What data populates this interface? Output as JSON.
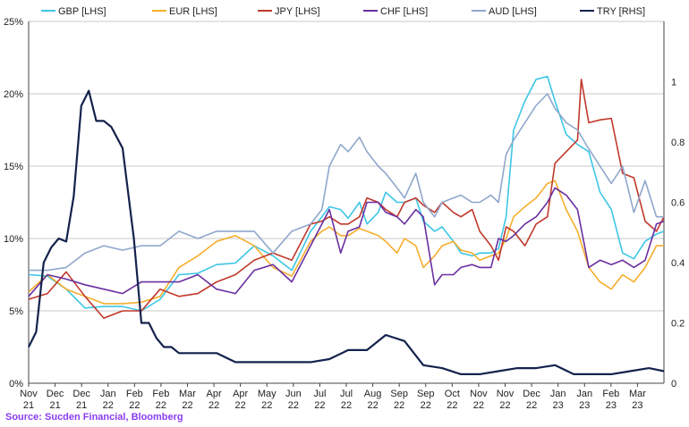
{
  "source": "Source: Sucden Financial, Bloomberg",
  "chart_data": {
    "type": "line",
    "title": "",
    "xlabel": "",
    "ylabel_left": "",
    "ylabel_right": "",
    "ylim_left": [
      0,
      25
    ],
    "ylim_right": [
      0,
      1.2
    ],
    "left_ticks": [
      "0%",
      "5%",
      "10%",
      "15%",
      "20%",
      "25%"
    ],
    "right_ticks": [
      "0",
      "0.2",
      "0.4",
      "0.6",
      "0.8",
      "1"
    ],
    "x_range": [
      0,
      16.9
    ],
    "x_ticks": [
      {
        "m": "Nov",
        "y": "21"
      },
      {
        "m": "Dec",
        "y": "21"
      },
      {
        "m": "Dec",
        "y": "21"
      },
      {
        "m": "Jan",
        "y": "22"
      },
      {
        "m": "Feb",
        "y": "22"
      },
      {
        "m": "Feb",
        "y": "22"
      },
      {
        "m": "Mar",
        "y": "22"
      },
      {
        "m": "Apr",
        "y": "22"
      },
      {
        "m": "Apr",
        "y": "22"
      },
      {
        "m": "May",
        "y": "22"
      },
      {
        "m": "Jun",
        "y": "22"
      },
      {
        "m": "Jul",
        "y": "22"
      },
      {
        "m": "Jul",
        "y": "22"
      },
      {
        "m": "Aug",
        "y": "22"
      },
      {
        "m": "Sep",
        "y": "22"
      },
      {
        "m": "Sep",
        "y": "22"
      },
      {
        "m": "Oct",
        "y": "22"
      },
      {
        "m": "Nov",
        "y": "22"
      },
      {
        "m": "Nov",
        "y": "22"
      },
      {
        "m": "Dec",
        "y": "22"
      },
      {
        "m": "Jan",
        "y": "23"
      },
      {
        "m": "Jan",
        "y": "23"
      },
      {
        "m": "Feb",
        "y": "23"
      },
      {
        "m": "Mar",
        "y": "23"
      }
    ],
    "series": [
      {
        "name": "GBP [LHS]",
        "color": "#3dc6e6",
        "axis": "left",
        "x": [
          0,
          0.5,
          1,
          1.5,
          2,
          2.5,
          3,
          3.5,
          4,
          4.5,
          5,
          5.5,
          6,
          6.5,
          7,
          7.5,
          7.8,
          8,
          8.3,
          8.5,
          8.8,
          9,
          9.3,
          9.5,
          9.8,
          10,
          10.3,
          10.5,
          10.8,
          11,
          11.3,
          11.5,
          11.8,
          12,
          12.3,
          12.5,
          12.7,
          12.9,
          13.2,
          13.5,
          13.8,
          14,
          14.3,
          14.6,
          14.9,
          15.2,
          15.5,
          15.8,
          16.1,
          16.4,
          16.7,
          16.9
        ],
        "y": [
          7.5,
          7.4,
          6.5,
          5.2,
          5.3,
          5.3,
          5.0,
          5.8,
          7.5,
          7.6,
          8.2,
          8.3,
          9.5,
          8.8,
          7.8,
          10.5,
          11.5,
          12.2,
          12.0,
          11.4,
          12.5,
          11.0,
          11.8,
          13.2,
          12.5,
          12.5,
          12.8,
          11.2,
          10.5,
          10.8,
          9.8,
          9.0,
          8.8,
          9.0,
          9.0,
          9.3,
          11.5,
          17.5,
          19.5,
          21.0,
          21.2,
          19.5,
          17.2,
          16.5,
          16.0,
          13.2,
          12.0,
          9.0,
          8.6,
          9.8,
          10.3,
          10.5
        ]
      },
      {
        "name": "EUR [LHS]",
        "color": "#f6ae2d",
        "axis": "left",
        "x": [
          0,
          0.5,
          1,
          1.5,
          2,
          2.5,
          3,
          3.5,
          4,
          4.5,
          5,
          5.5,
          6,
          6.5,
          7,
          7.5,
          7.8,
          8,
          8.3,
          8.5,
          8.8,
          9,
          9.3,
          9.5,
          9.8,
          10,
          10.3,
          10.5,
          10.8,
          11,
          11.3,
          11.5,
          11.8,
          12,
          12.3,
          12.5,
          12.7,
          12.9,
          13.2,
          13.5,
          13.8,
          14,
          14.3,
          14.6,
          14.9,
          15.2,
          15.5,
          15.8,
          16.1,
          16.4,
          16.7,
          16.9
        ],
        "y": [
          6.3,
          7.5,
          6.5,
          6.0,
          5.5,
          5.5,
          5.6,
          6.0,
          8.0,
          8.8,
          9.8,
          10.2,
          9.5,
          8.0,
          7.4,
          9.8,
          10.5,
          10.8,
          10.2,
          10.2,
          10.7,
          10.5,
          10.2,
          9.8,
          9.0,
          10.0,
          9.5,
          8.0,
          8.8,
          9.5,
          9.8,
          9.2,
          9.0,
          8.5,
          8.8,
          9.0,
          10.0,
          11.5,
          12.2,
          12.8,
          13.8,
          14.0,
          12.0,
          10.5,
          8.0,
          7.0,
          6.5,
          7.5,
          7.0,
          8.0,
          9.5,
          9.5
        ]
      },
      {
        "name": "JPY [LHS]",
        "color": "#c0392b",
        "axis": "left",
        "x": [
          0,
          0.5,
          1,
          1.5,
          2,
          2.5,
          3,
          3.5,
          4,
          4.5,
          5,
          5.5,
          6,
          6.5,
          7,
          7.5,
          7.8,
          8,
          8.3,
          8.5,
          8.8,
          9,
          9.3,
          9.5,
          9.8,
          10,
          10.3,
          10.5,
          10.8,
          11,
          11.3,
          11.5,
          11.8,
          12,
          12.3,
          12.5,
          12.7,
          12.9,
          13.2,
          13.5,
          13.8,
          14,
          14.3,
          14.6,
          14.7,
          14.9,
          15.2,
          15.5,
          15.8,
          16.1,
          16.4,
          16.7,
          16.9
        ],
        "y": [
          5.8,
          6.2,
          7.7,
          6.0,
          4.5,
          5.0,
          5.0,
          6.5,
          6.0,
          6.2,
          7.0,
          7.5,
          8.5,
          9.0,
          8.5,
          11.0,
          11.2,
          11.5,
          11.0,
          11.0,
          11.5,
          12.8,
          12.5,
          12.0,
          11.5,
          12.5,
          12.8,
          12.3,
          11.8,
          12.5,
          11.8,
          11.5,
          12.0,
          10.5,
          9.5,
          8.5,
          10.8,
          10.5,
          9.5,
          11.0,
          11.5,
          15.2,
          16.0,
          16.8,
          21.0,
          18.0,
          18.2,
          18.3,
          14.5,
          14.2,
          11.2,
          10.5,
          11.5
        ]
      },
      {
        "name": "CHF [LHS]",
        "color": "#6a2fa0",
        "axis": "left",
        "x": [
          0,
          0.5,
          1,
          1.5,
          2,
          2.5,
          3,
          3.5,
          4,
          4.5,
          5,
          5.5,
          6,
          6.5,
          7,
          7.5,
          7.8,
          8,
          8.3,
          8.5,
          8.8,
          9,
          9.3,
          9.5,
          9.8,
          10,
          10.3,
          10.5,
          10.8,
          11,
          11.3,
          11.5,
          11.8,
          12,
          12.3,
          12.5,
          12.7,
          12.9,
          13.2,
          13.5,
          13.8,
          14,
          14.3,
          14.6,
          14.9,
          15.2,
          15.5,
          15.8,
          16.1,
          16.4,
          16.7,
          16.9
        ],
        "y": [
          6.0,
          7.5,
          7.2,
          6.8,
          6.5,
          6.2,
          7.0,
          7.0,
          7.0,
          7.5,
          6.5,
          6.2,
          7.8,
          8.2,
          7.0,
          9.5,
          11.0,
          12.0,
          9.0,
          10.5,
          10.8,
          12.5,
          12.5,
          11.8,
          11.5,
          11.0,
          12.0,
          11.5,
          6.8,
          7.5,
          7.5,
          8.0,
          8.2,
          8.0,
          8.0,
          10.0,
          9.8,
          10.2,
          11.0,
          11.5,
          12.5,
          13.5,
          13.0,
          12.0,
          8.0,
          8.5,
          8.2,
          8.5,
          8.0,
          8.5,
          11.0,
          11.2
        ]
      },
      {
        "name": "AUD [LHS]",
        "color": "#8fa7cc",
        "axis": "left",
        "x": [
          0,
          0.5,
          1,
          1.5,
          2,
          2.5,
          3,
          3.5,
          4,
          4.5,
          5,
          5.5,
          6,
          6.5,
          7,
          7.5,
          7.8,
          8,
          8.3,
          8.5,
          8.8,
          9,
          9.3,
          9.5,
          9.8,
          10,
          10.3,
          10.5,
          10.8,
          11,
          11.3,
          11.5,
          11.8,
          12,
          12.3,
          12.5,
          12.7,
          12.9,
          13.2,
          13.5,
          13.8,
          14,
          14.3,
          14.6,
          14.9,
          15.2,
          15.5,
          15.8,
          16.1,
          16.4,
          16.7,
          16.9
        ],
        "y": [
          7.8,
          7.8,
          8.0,
          9.0,
          9.5,
          9.2,
          9.5,
          9.5,
          10.5,
          10.0,
          10.5,
          10.5,
          10.5,
          9.0,
          10.5,
          11.0,
          12.0,
          15.0,
          16.5,
          16.0,
          17.0,
          16.0,
          15.0,
          14.5,
          13.5,
          12.8,
          14.5,
          12.5,
          11.5,
          12.5,
          12.8,
          13.0,
          12.5,
          12.5,
          13.0,
          12.5,
          15.8,
          16.8,
          18.0,
          19.2,
          20.0,
          19.0,
          18.0,
          17.5,
          16.2,
          15.0,
          13.8,
          15.0,
          11.8,
          14.0,
          11.5,
          11.5
        ]
      },
      {
        "name": "TRY [RHS]",
        "color": "#14224d",
        "axis": "right",
        "x": [
          0,
          0.2,
          0.4,
          0.6,
          0.8,
          1.0,
          1.2,
          1.4,
          1.6,
          1.8,
          2.0,
          2.2,
          2.5,
          2.8,
          3.0,
          3.2,
          3.4,
          3.6,
          3.8,
          4.0,
          4.2,
          4.5,
          5.0,
          5.5,
          6.0,
          6.5,
          7.0,
          7.5,
          8.0,
          8.5,
          9.0,
          9.5,
          10.0,
          10.5,
          11.0,
          11.5,
          12.0,
          12.5,
          13.0,
          13.5,
          14.0,
          14.5,
          15.0,
          15.5,
          16.0,
          16.5,
          16.9
        ],
        "y": [
          0.12,
          0.17,
          0.4,
          0.45,
          0.48,
          0.47,
          0.62,
          0.92,
          0.97,
          0.87,
          0.87,
          0.85,
          0.78,
          0.48,
          0.2,
          0.2,
          0.15,
          0.12,
          0.12,
          0.1,
          0.1,
          0.1,
          0.1,
          0.07,
          0.07,
          0.07,
          0.07,
          0.07,
          0.08,
          0.11,
          0.11,
          0.16,
          0.14,
          0.06,
          0.05,
          0.03,
          0.03,
          0.04,
          0.05,
          0.05,
          0.06,
          0.03,
          0.03,
          0.03,
          0.04,
          0.05,
          0.04
        ]
      }
    ]
  }
}
